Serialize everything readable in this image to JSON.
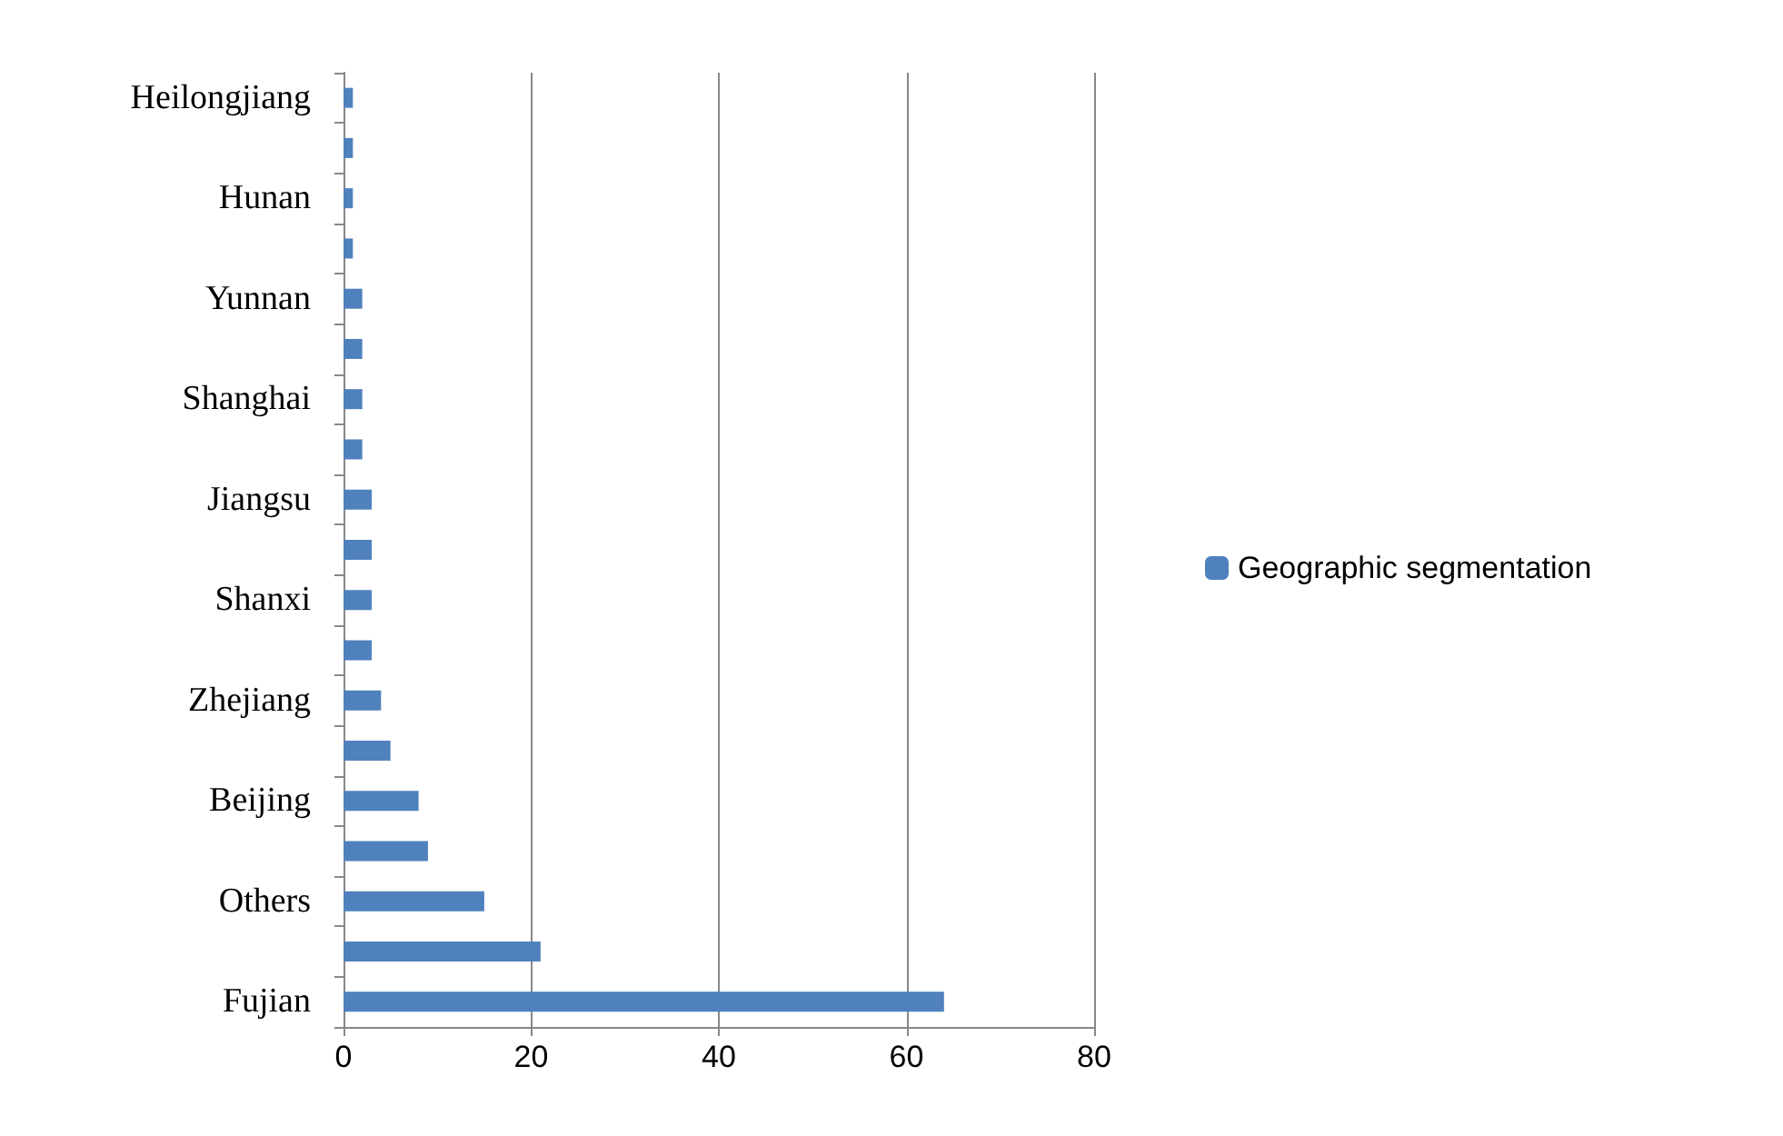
{
  "chart_data": {
    "type": "bar",
    "orientation": "horizontal",
    "categories": [
      "Heilongjiang",
      null,
      "Hunan",
      null,
      "Yunnan",
      null,
      "Shanghai",
      null,
      "Jiangsu",
      null,
      "Shanxi",
      null,
      "Zhejiang",
      null,
      "Beijing",
      null,
      "Others",
      null,
      "Fujian"
    ],
    "series": [
      {
        "name": "Geographic segmentation",
        "color": "#4f81bd",
        "values": [
          1,
          1,
          1,
          1,
          2,
          2,
          2,
          2,
          3,
          3,
          3,
          3,
          4,
          5,
          8,
          9,
          15,
          21,
          64
        ]
      }
    ],
    "xlim": [
      0,
      80
    ],
    "xticks": [
      0,
      20,
      40,
      60,
      80
    ],
    "grid": "x",
    "legend": "right"
  }
}
